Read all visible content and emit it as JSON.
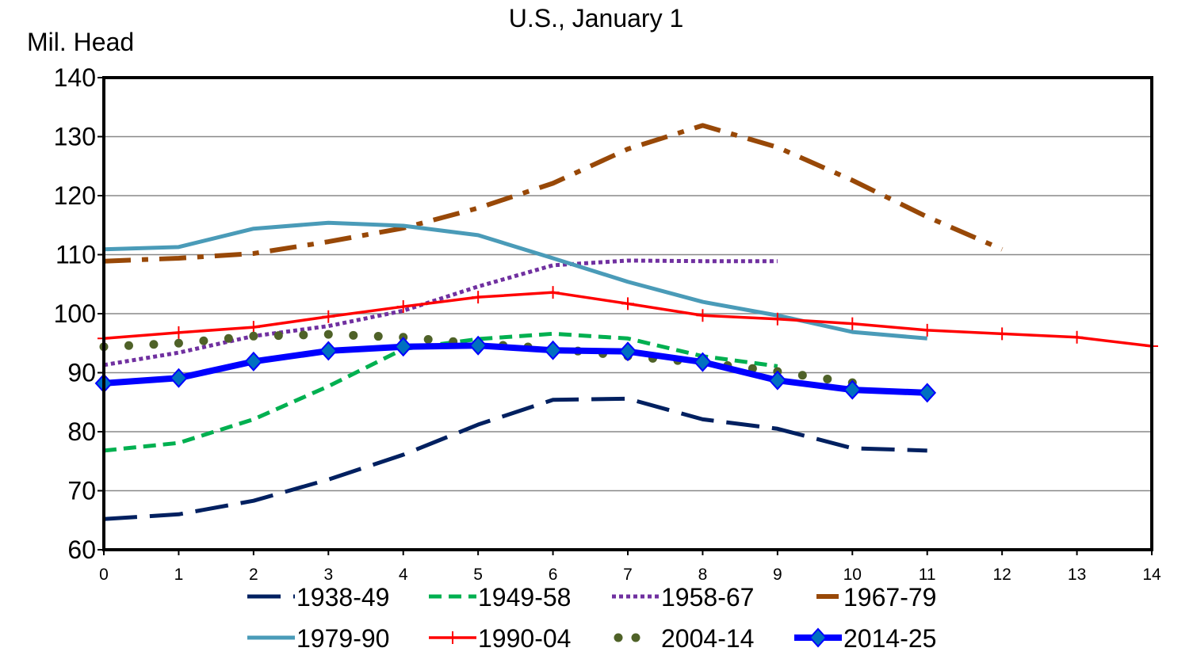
{
  "chart_data": {
    "type": "line",
    "title": "U.S., January 1",
    "ylabel": "Mil. Head",
    "xlabel": "",
    "xlim": [
      0,
      14
    ],
    "ylim": [
      60,
      140
    ],
    "xticks": [
      "0",
      "1",
      "2",
      "3",
      "4",
      "5",
      "6",
      "7",
      "8",
      "9",
      "10",
      "11",
      "12",
      "13",
      "14"
    ],
    "yticks": [
      "60",
      "70",
      "80",
      "90",
      "100",
      "110",
      "120",
      "130",
      "140"
    ],
    "grid": "horizontal",
    "legend": "bottom",
    "series": [
      {
        "name": "1938-49",
        "color": "#002060",
        "style": "long-dash",
        "values": [
          65.2,
          66.0,
          68.3,
          71.9,
          76.1,
          81.2,
          85.4,
          85.6,
          82.1,
          80.5,
          77.2,
          76.8
        ]
      },
      {
        "name": "1949-58",
        "color": "#00B050",
        "style": "dash",
        "values": [
          76.8,
          78.1,
          82.1,
          87.7,
          94.0,
          95.7,
          96.6,
          95.8,
          92.8,
          91.1
        ]
      },
      {
        "name": "1958-67",
        "color": "#7030A0",
        "style": "dot",
        "values": [
          91.3,
          93.4,
          96.2,
          97.9,
          100.5,
          104.6,
          108.2,
          109.0,
          108.9,
          108.9
        ]
      },
      {
        "name": "1967-79",
        "color": "#984807",
        "style": "dash-dot",
        "values": [
          108.9,
          109.4,
          110.2,
          112.2,
          114.5,
          117.9,
          122.1,
          127.9,
          131.9,
          128.2,
          122.6,
          116.4,
          110.9
        ]
      },
      {
        "name": "1979-90",
        "color": "#4A9BB8",
        "style": "solid",
        "values": [
          110.9,
          111.3,
          114.4,
          115.4,
          114.9,
          113.3,
          109.4,
          105.4,
          102.0,
          99.7,
          96.9,
          95.8
        ]
      },
      {
        "name": "1990-04",
        "color": "#FF0000",
        "style": "solid-plus",
        "values": [
          95.8,
          96.8,
          97.7,
          99.5,
          101.2,
          102.8,
          103.6,
          101.7,
          99.7,
          99.1,
          98.3,
          97.2,
          96.6,
          96.0,
          94.5
        ]
      },
      {
        "name": "2004-14",
        "color": "#4F6228",
        "style": "round-dot",
        "values": [
          94.4,
          95.0,
          96.2,
          96.5,
          96.0,
          94.9,
          94.1,
          92.8,
          91.7,
          90.2,
          88.3
        ]
      },
      {
        "name": "2014-25",
        "color": "#0000FF",
        "style": "thick-diamond",
        "values": [
          88.2,
          89.1,
          91.9,
          93.7,
          94.4,
          94.6,
          93.8,
          93.6,
          91.8,
          88.7,
          87.1,
          86.6
        ]
      }
    ]
  }
}
